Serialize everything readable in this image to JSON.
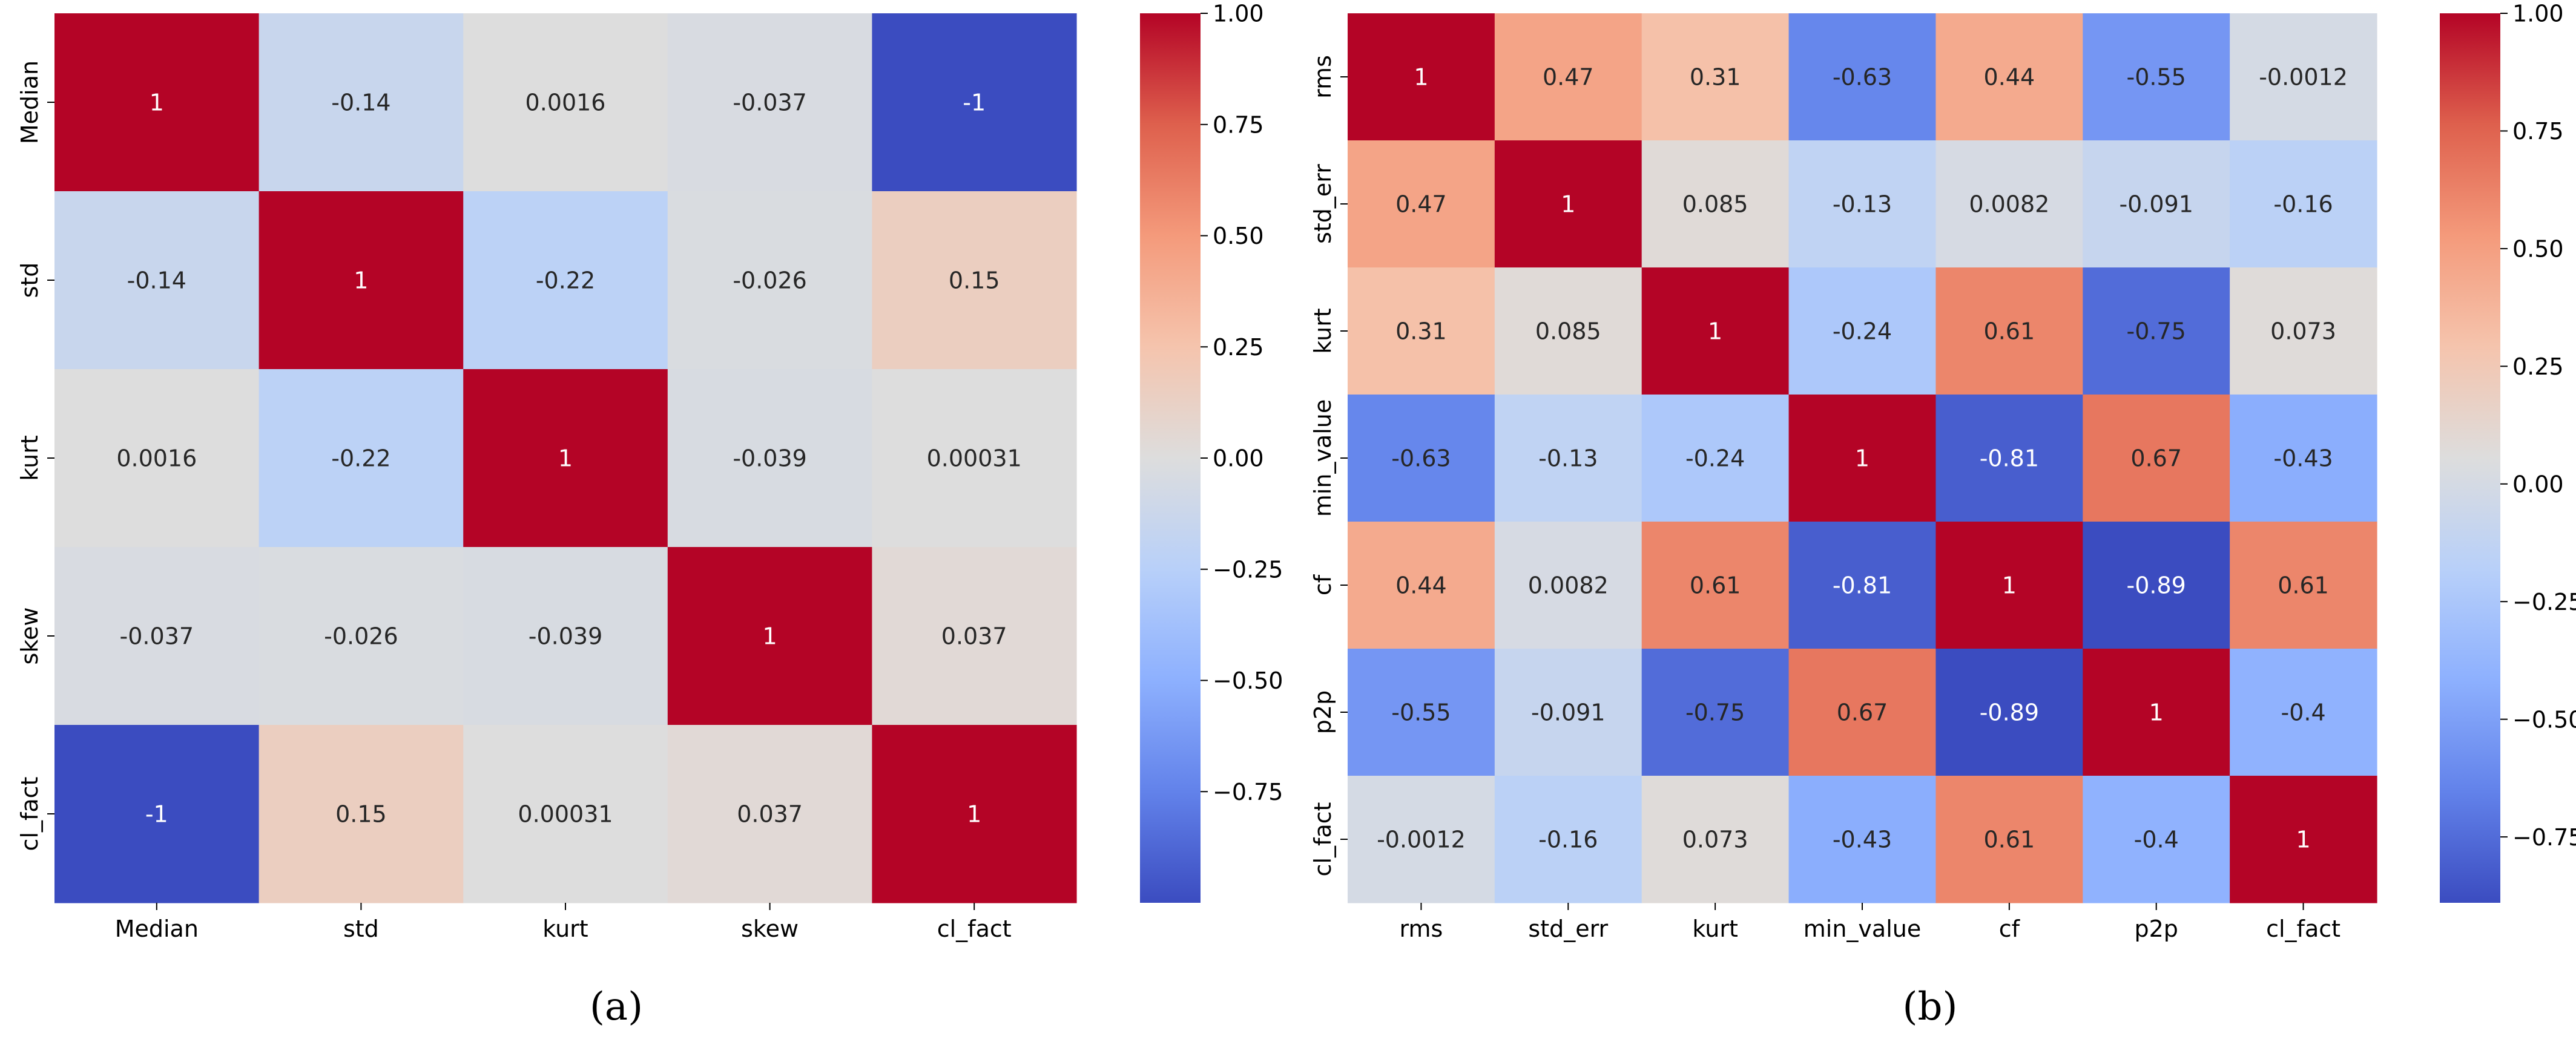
{
  "chart_data": [
    {
      "type": "heatmap",
      "panel_label": "(a)",
      "row_labels": [
        "Median",
        "std",
        "kurt",
        "skew",
        "cl_fact"
      ],
      "col_labels": [
        "Median",
        "std",
        "kurt",
        "skew",
        "cl_fact"
      ],
      "values": [
        [
          1,
          -0.14,
          0.0016,
          -0.037,
          -1
        ],
        [
          -0.14,
          1,
          -0.22,
          -0.026,
          0.15
        ],
        [
          0.0016,
          -0.22,
          1,
          -0.039,
          0.00031
        ],
        [
          -0.037,
          -0.026,
          -0.039,
          1,
          0.037
        ],
        [
          -1,
          0.15,
          0.00031,
          0.037,
          1
        ]
      ],
      "cell_labels": [
        [
          "1",
          "-0.14",
          "0.0016",
          "-0.037",
          "-1"
        ],
        [
          "-0.14",
          "1",
          "-0.22",
          "-0.026",
          "0.15"
        ],
        [
          "0.0016",
          "-0.22",
          "1",
          "-0.039",
          "0.00031"
        ],
        [
          "-0.037",
          "-0.026",
          "-0.039",
          "1",
          "0.037"
        ],
        [
          "-1",
          "0.15",
          "0.00031",
          "0.037",
          "1"
        ]
      ],
      "colormap": "coolwarm",
      "color_range": [
        -1,
        1
      ],
      "colorbar_ticks": [
        1.0,
        0.75,
        0.5,
        0.25,
        0.0,
        -0.25,
        -0.5,
        -0.75
      ],
      "colorbar_tick_labels": [
        "1.00",
        "0.75",
        "0.50",
        "0.25",
        "0.00",
        "−0.25",
        "−0.50",
        "−0.75"
      ],
      "grid": false
    },
    {
      "type": "heatmap",
      "panel_label": "(b)",
      "row_labels": [
        "rms",
        "std_err",
        "kurt",
        "min_value",
        "cf",
        "p2p",
        "cl_fact"
      ],
      "col_labels": [
        "rms",
        "std_err",
        "kurt",
        "min_value",
        "cf",
        "p2p",
        "cl_fact"
      ],
      "values": [
        [
          1,
          0.47,
          0.31,
          -0.63,
          0.44,
          -0.55,
          -0.0012
        ],
        [
          0.47,
          1,
          0.085,
          -0.13,
          0.0082,
          -0.091,
          -0.16
        ],
        [
          0.31,
          0.085,
          1,
          -0.24,
          0.61,
          -0.75,
          0.073
        ],
        [
          -0.63,
          -0.13,
          -0.24,
          1,
          -0.81,
          0.67,
          -0.43
        ],
        [
          0.44,
          0.0082,
          0.61,
          -0.81,
          1,
          -0.89,
          0.61
        ],
        [
          -0.55,
          -0.091,
          -0.75,
          0.67,
          -0.89,
          1,
          -0.4
        ],
        [
          -0.0012,
          -0.16,
          0.073,
          -0.43,
          0.61,
          -0.4,
          1
        ]
      ],
      "cell_labels": [
        [
          "1",
          "0.47",
          "0.31",
          "-0.63",
          "0.44",
          "-0.55",
          "-0.0012"
        ],
        [
          "0.47",
          "1",
          "0.085",
          "-0.13",
          "0.0082",
          "-0.091",
          "-0.16"
        ],
        [
          "0.31",
          "0.085",
          "1",
          "-0.24",
          "0.61",
          "-0.75",
          "0.073"
        ],
        [
          "-0.63",
          "-0.13",
          "-0.24",
          "1",
          "-0.81",
          "0.67",
          "-0.43"
        ],
        [
          "0.44",
          "0.0082",
          "0.61",
          "-0.81",
          "1",
          "-0.89",
          "0.61"
        ],
        [
          "-0.55",
          "-0.091",
          "-0.75",
          "0.67",
          "-0.89",
          "1",
          "-0.4"
        ],
        [
          "-0.0012",
          "-0.16",
          "0.073",
          "-0.43",
          "0.61",
          "-0.4",
          "1"
        ]
      ],
      "colormap": "coolwarm",
      "color_range": [
        -0.89,
        1
      ],
      "colorbar_ticks": [
        1.0,
        0.75,
        0.5,
        0.25,
        0.0,
        -0.25,
        -0.5,
        -0.75
      ],
      "colorbar_tick_labels": [
        "1.00",
        "0.75",
        "0.50",
        "0.25",
        "0.00",
        "−0.25",
        "−0.50",
        "−0.75"
      ],
      "grid": false
    }
  ]
}
